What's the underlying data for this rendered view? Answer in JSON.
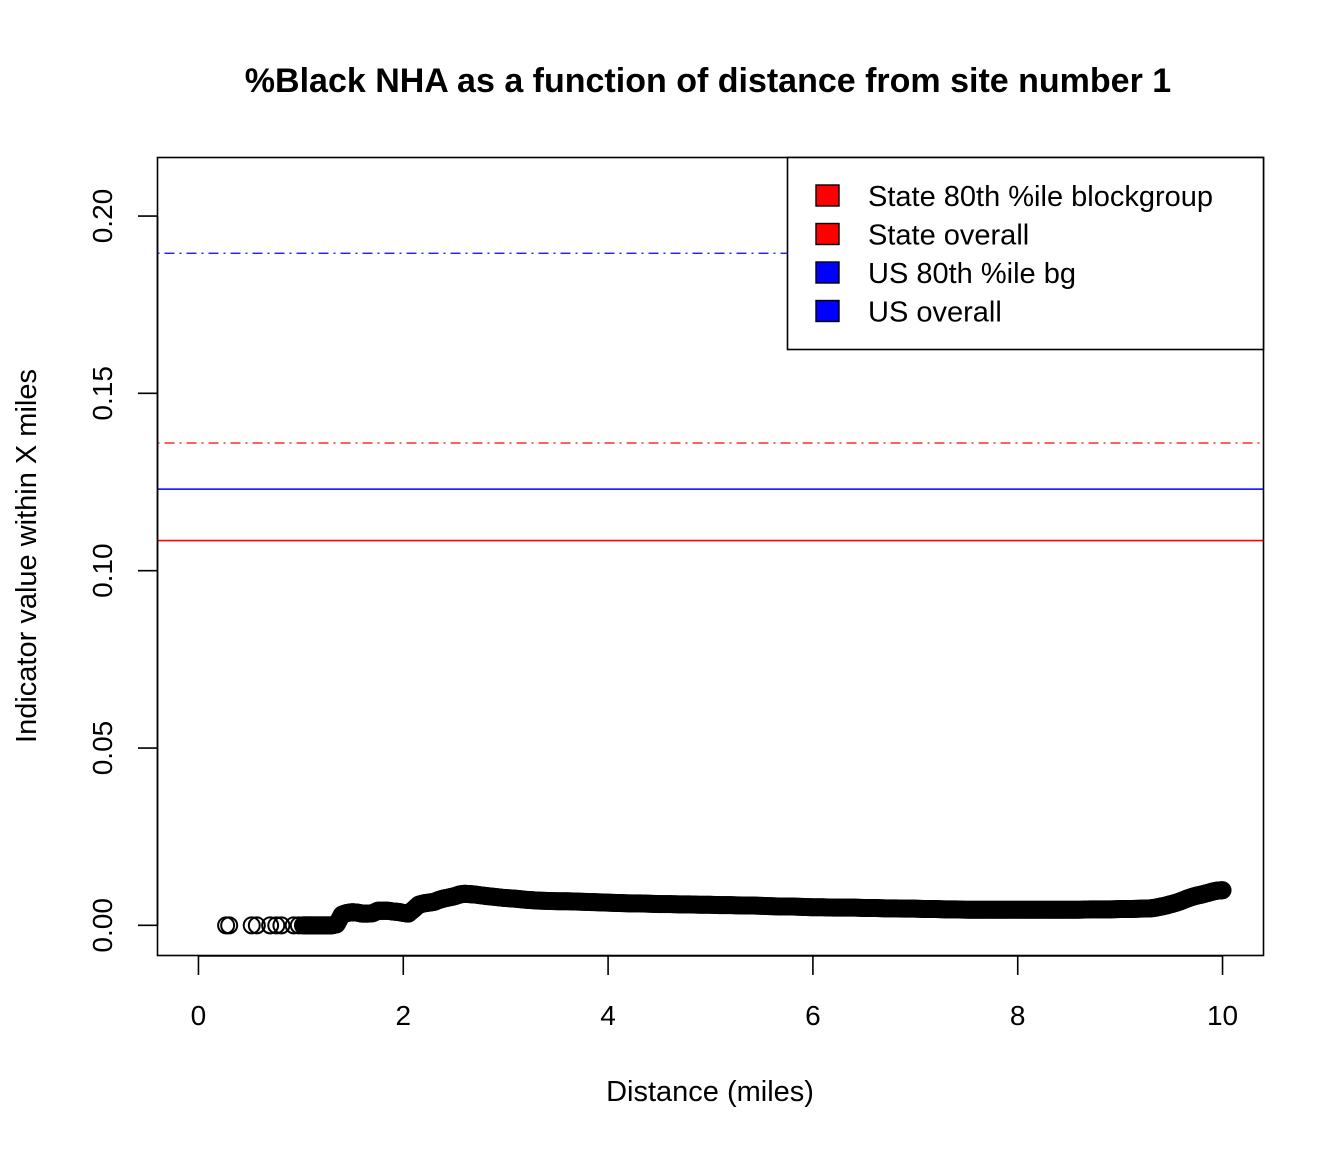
{
  "chart_data": {
    "type": "scatter",
    "title": "%Black NHA as a function of distance from site number 1",
    "xlabel": "Distance (miles)",
    "ylabel": "Indicator value within X miles",
    "xlim": [
      -0.4,
      10.4
    ],
    "ylim": [
      -0.0085,
      0.2165
    ],
    "x_ticks": [
      {
        "value": 0,
        "label": "0"
      },
      {
        "value": 2,
        "label": "2"
      },
      {
        "value": 4,
        "label": "4"
      },
      {
        "value": 6,
        "label": "6"
      },
      {
        "value": 8,
        "label": "8"
      },
      {
        "value": 10,
        "label": "10"
      }
    ],
    "y_ticks": [
      {
        "value": 0.0,
        "label": "0.00"
      },
      {
        "value": 0.05,
        "label": "0.05"
      },
      {
        "value": 0.1,
        "label": "0.10"
      },
      {
        "value": 0.15,
        "label": "0.15"
      },
      {
        "value": 0.2,
        "label": "0.20"
      }
    ],
    "reference_lines": [
      {
        "name": "State 80th %ile blockgroup",
        "y": 0.136,
        "color": "#ff0000",
        "style": "dotdash"
      },
      {
        "name": "State overall",
        "y": 0.1085,
        "color": "#ff0000",
        "style": "solid"
      },
      {
        "name": "US 80th %ile bg",
        "y": 0.1895,
        "color": "#0000ff",
        "style": "dotdash"
      },
      {
        "name": "US overall",
        "y": 0.123,
        "color": "#0000ff",
        "style": "solid"
      }
    ],
    "legend": {
      "position": "top-right",
      "entries": [
        {
          "label": "State 80th %ile blockgroup",
          "color": "#ff0000"
        },
        {
          "label": "State overall",
          "color": "#ff0000"
        },
        {
          "label": "US 80th %ile bg",
          "color": "#0000ff"
        },
        {
          "label": "US overall",
          "color": "#0000ff"
        }
      ]
    },
    "series": [
      {
        "marker": "open-circle",
        "color": "#000000",
        "points": [
          {
            "x": 0.27,
            "y": 0.0
          },
          {
            "x": 0.3,
            "y": 0.0
          },
          {
            "x": 0.52,
            "y": 0.0
          },
          {
            "x": 0.57,
            "y": 0.0
          },
          {
            "x": 0.7,
            "y": 0.0
          },
          {
            "x": 0.76,
            "y": 0.0
          },
          {
            "x": 0.81,
            "y": 0.0
          },
          {
            "x": 0.93,
            "y": 0.0
          },
          {
            "x": 0.98,
            "y": 0.0
          },
          {
            "x": 1.02,
            "y": 0.0
          },
          {
            "x": 1.06,
            "y": 0.0
          },
          {
            "x": 1.1,
            "y": 0.0
          },
          {
            "x": 1.15,
            "y": 0.0
          },
          {
            "x": 1.2,
            "y": 0.0
          },
          {
            "x": 1.25,
            "y": 0.0
          },
          {
            "x": 1.3,
            "y": 0.0
          },
          {
            "x": 1.35,
            "y": 0.0003
          },
          {
            "x": 1.4,
            "y": 0.003
          },
          {
            "x": 1.45,
            "y": 0.0035
          },
          {
            "x": 1.5,
            "y": 0.0037
          },
          {
            "x": 1.55,
            "y": 0.0036
          },
          {
            "x": 1.6,
            "y": 0.0033
          },
          {
            "x": 1.65,
            "y": 0.0033
          },
          {
            "x": 1.7,
            "y": 0.0034
          },
          {
            "x": 1.75,
            "y": 0.0041
          },
          {
            "x": 1.8,
            "y": 0.0041
          },
          {
            "x": 1.85,
            "y": 0.0041
          },
          {
            "x": 1.9,
            "y": 0.0039
          },
          {
            "x": 1.95,
            "y": 0.0038
          },
          {
            "x": 2.0,
            "y": 0.0035
          },
          {
            "x": 2.05,
            "y": 0.0033
          },
          {
            "x": 2.1,
            "y": 0.0045
          },
          {
            "x": 2.15,
            "y": 0.0058
          },
          {
            "x": 2.2,
            "y": 0.0062
          },
          {
            "x": 2.25,
            "y": 0.0064
          },
          {
            "x": 2.3,
            "y": 0.0066
          },
          {
            "x": 2.35,
            "y": 0.0072
          },
          {
            "x": 2.4,
            "y": 0.0076
          },
          {
            "x": 2.45,
            "y": 0.0079
          },
          {
            "x": 2.5,
            "y": 0.0082
          },
          {
            "x": 2.55,
            "y": 0.0087
          },
          {
            "x": 2.6,
            "y": 0.0089
          },
          {
            "x": 2.65,
            "y": 0.0088
          },
          {
            "x": 2.7,
            "y": 0.0087
          },
          {
            "x": 2.8,
            "y": 0.0083
          },
          {
            "x": 2.9,
            "y": 0.008
          },
          {
            "x": 3.0,
            "y": 0.0077
          },
          {
            "x": 3.1,
            "y": 0.0075
          },
          {
            "x": 3.2,
            "y": 0.0072
          },
          {
            "x": 3.3,
            "y": 0.007
          },
          {
            "x": 3.4,
            "y": 0.0069
          },
          {
            "x": 3.5,
            "y": 0.0068
          },
          {
            "x": 3.6,
            "y": 0.0068
          },
          {
            "x": 3.7,
            "y": 0.0067
          },
          {
            "x": 3.8,
            "y": 0.0066
          },
          {
            "x": 3.9,
            "y": 0.0065
          },
          {
            "x": 4.0,
            "y": 0.0064
          },
          {
            "x": 4.1,
            "y": 0.0063
          },
          {
            "x": 4.2,
            "y": 0.0062
          },
          {
            "x": 4.3,
            "y": 0.0062
          },
          {
            "x": 4.4,
            "y": 0.0061
          },
          {
            "x": 4.5,
            "y": 0.006
          },
          {
            "x": 4.6,
            "y": 0.006
          },
          {
            "x": 4.7,
            "y": 0.0059
          },
          {
            "x": 4.8,
            "y": 0.0059
          },
          {
            "x": 4.9,
            "y": 0.0058
          },
          {
            "x": 5.0,
            "y": 0.0058
          },
          {
            "x": 5.1,
            "y": 0.0057
          },
          {
            "x": 5.2,
            "y": 0.0057
          },
          {
            "x": 5.3,
            "y": 0.0056
          },
          {
            "x": 5.4,
            "y": 0.0056
          },
          {
            "x": 5.5,
            "y": 0.0055
          },
          {
            "x": 5.6,
            "y": 0.0054
          },
          {
            "x": 5.7,
            "y": 0.0053
          },
          {
            "x": 5.8,
            "y": 0.0053
          },
          {
            "x": 5.9,
            "y": 0.0052
          },
          {
            "x": 6.0,
            "y": 0.0051
          },
          {
            "x": 6.1,
            "y": 0.0051
          },
          {
            "x": 6.2,
            "y": 0.005
          },
          {
            "x": 6.3,
            "y": 0.005
          },
          {
            "x": 6.4,
            "y": 0.005
          },
          {
            "x": 6.5,
            "y": 0.0049
          },
          {
            "x": 6.6,
            "y": 0.0049
          },
          {
            "x": 6.7,
            "y": 0.0048
          },
          {
            "x": 6.8,
            "y": 0.0048
          },
          {
            "x": 6.9,
            "y": 0.0047
          },
          {
            "x": 7.0,
            "y": 0.0047
          },
          {
            "x": 7.1,
            "y": 0.0046
          },
          {
            "x": 7.2,
            "y": 0.0046
          },
          {
            "x": 7.3,
            "y": 0.0045
          },
          {
            "x": 7.4,
            "y": 0.0045
          },
          {
            "x": 7.5,
            "y": 0.0044
          },
          {
            "x": 7.6,
            "y": 0.0044
          },
          {
            "x": 7.7,
            "y": 0.0044
          },
          {
            "x": 7.8,
            "y": 0.0044
          },
          {
            "x": 7.9,
            "y": 0.0044
          },
          {
            "x": 8.0,
            "y": 0.0044
          },
          {
            "x": 8.1,
            "y": 0.0044
          },
          {
            "x": 8.2,
            "y": 0.0044
          },
          {
            "x": 8.3,
            "y": 0.0044
          },
          {
            "x": 8.4,
            "y": 0.0044
          },
          {
            "x": 8.5,
            "y": 0.0044
          },
          {
            "x": 8.6,
            "y": 0.0044
          },
          {
            "x": 8.7,
            "y": 0.0045
          },
          {
            "x": 8.8,
            "y": 0.0045
          },
          {
            "x": 8.9,
            "y": 0.0045
          },
          {
            "x": 9.0,
            "y": 0.0046
          },
          {
            "x": 9.1,
            "y": 0.0046
          },
          {
            "x": 9.2,
            "y": 0.0047
          },
          {
            "x": 9.3,
            "y": 0.0048
          },
          {
            "x": 9.35,
            "y": 0.005
          },
          {
            "x": 9.4,
            "y": 0.0053
          },
          {
            "x": 9.45,
            "y": 0.0056
          },
          {
            "x": 9.5,
            "y": 0.006
          },
          {
            "x": 9.55,
            "y": 0.0064
          },
          {
            "x": 9.6,
            "y": 0.0069
          },
          {
            "x": 9.65,
            "y": 0.0075
          },
          {
            "x": 9.7,
            "y": 0.008
          },
          {
            "x": 9.75,
            "y": 0.0084
          },
          {
            "x": 9.8,
            "y": 0.0087
          },
          {
            "x": 9.85,
            "y": 0.0091
          },
          {
            "x": 9.9,
            "y": 0.0095
          },
          {
            "x": 9.95,
            "y": 0.0098
          },
          {
            "x": 10.0,
            "y": 0.0099
          }
        ]
      }
    ]
  }
}
